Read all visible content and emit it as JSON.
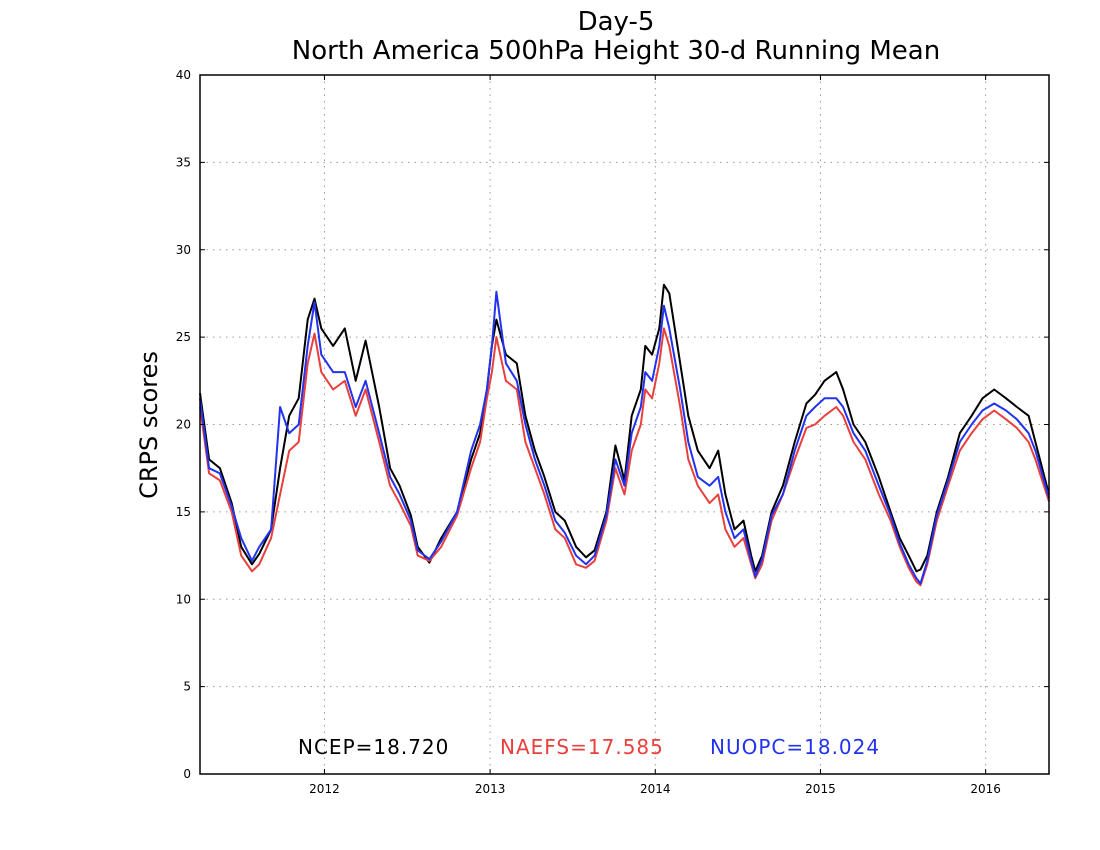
{
  "chart_data": {
    "type": "line",
    "title": "Day-5",
    "subtitle": "North America 500hPa Height 30-d Running Mean",
    "xlabel": "",
    "ylabel": "CRPS scores",
    "ylim": [
      0,
      40
    ],
    "xlim": [
      "2011-04-01",
      "2016-05-20"
    ],
    "y_ticks": [
      "0",
      "5",
      "10",
      "15",
      "20",
      "25",
      "30",
      "35",
      "40"
    ],
    "x_ticks": [
      {
        "label": "2012",
        "date": "2012-01-01"
      },
      {
        "label": "2013",
        "date": "2013-01-01"
      },
      {
        "label": "2014",
        "date": "2014-01-01"
      },
      {
        "label": "2015",
        "date": "2015-01-01"
      },
      {
        "label": "2016",
        "date": "2016-01-01"
      }
    ],
    "grid": true,
    "legend_position": "bottom-center",
    "legend": [
      {
        "label": "NCEP=18.720",
        "color": "#000000"
      },
      {
        "label": "NAEFS=17.585",
        "color": "#e8403c"
      },
      {
        "label": "NUOPC=18.024",
        "color": "#2233ee"
      }
    ],
    "series": [
      {
        "color": "#000000",
        "x": [
          "2011-04-01",
          "2011-04-21",
          "2011-05-15",
          "2011-06-10",
          "2011-07-01",
          "2011-07-25",
          "2011-08-10",
          "2011-09-05",
          "2011-09-25",
          "2011-10-15",
          "2011-11-05",
          "2011-11-25",
          "2011-12-10",
          "2011-12-25",
          "2012-01-20",
          "2012-02-15",
          "2012-03-10",
          "2012-04-01",
          "2012-05-01",
          "2012-05-25",
          "2012-06-15",
          "2012-07-10",
          "2012-07-25",
          "2012-08-20",
          "2012-09-15",
          "2012-10-20",
          "2012-11-20",
          "2012-12-10",
          "2012-12-25",
          "2013-01-05",
          "2013-01-15",
          "2013-02-05",
          "2013-03-01",
          "2013-03-20",
          "2013-04-10",
          "2013-05-01",
          "2013-05-25",
          "2013-06-15",
          "2013-07-10",
          "2013-08-01",
          "2013-08-20",
          "2013-09-15",
          "2013-10-05",
          "2013-10-25",
          "2013-11-10",
          "2013-11-30",
          "2013-12-10",
          "2013-12-25",
          "2014-01-10",
          "2014-01-20",
          "2014-02-01",
          "2014-02-25",
          "2014-03-15",
          "2014-04-05",
          "2014-05-01",
          "2014-05-20",
          "2014-06-05",
          "2014-06-25",
          "2014-07-15",
          "2014-08-01",
          "2014-08-10",
          "2014-08-25",
          "2014-09-15",
          "2014-10-10",
          "2014-11-05",
          "2014-12-01",
          "2014-12-20",
          "2015-01-10",
          "2015-02-05",
          "2015-02-20",
          "2015-03-15",
          "2015-04-10",
          "2015-05-10",
          "2015-06-05",
          "2015-06-25",
          "2015-07-15",
          "2015-08-01",
          "2015-08-10",
          "2015-08-25",
          "2015-09-15",
          "2015-10-10",
          "2015-11-05",
          "2015-12-01",
          "2015-12-25",
          "2016-01-20",
          "2016-02-15",
          "2016-03-10",
          "2016-04-05",
          "2016-04-20",
          "2016-05-20"
        ],
        "values": [
          21.8,
          18.0,
          17.5,
          15.5,
          13.0,
          12.0,
          12.6,
          14.0,
          17.5,
          20.5,
          21.5,
          26.0,
          27.2,
          25.5,
          24.5,
          25.5,
          22.5,
          24.8,
          21.0,
          17.5,
          16.5,
          14.8,
          13.0,
          12.1,
          13.5,
          15.0,
          18.0,
          19.5,
          22.0,
          24.5,
          26.0,
          24.0,
          23.5,
          20.5,
          18.5,
          17.0,
          15.0,
          14.5,
          13.0,
          12.4,
          12.8,
          15.0,
          18.8,
          16.8,
          20.5,
          22.0,
          24.5,
          24.0,
          25.5,
          28.0,
          27.5,
          23.5,
          20.5,
          18.5,
          17.5,
          18.5,
          16.0,
          14.0,
          14.5,
          12.5,
          11.6,
          12.5,
          15.0,
          16.5,
          19.0,
          21.2,
          21.7,
          22.5,
          23.0,
          22.0,
          20.0,
          19.0,
          17.0,
          15.0,
          13.5,
          12.5,
          11.6,
          11.7,
          12.5,
          15.0,
          17.0,
          19.5,
          20.5,
          21.5,
          22.0,
          21.5,
          21.0,
          20.5,
          19.0,
          16.0
        ]
      },
      {
        "color": "#e8403c",
        "x": [
          "2011-04-01",
          "2011-04-21",
          "2011-05-15",
          "2011-06-10",
          "2011-07-01",
          "2011-07-25",
          "2011-08-10",
          "2011-09-05",
          "2011-09-25",
          "2011-10-15",
          "2011-11-05",
          "2011-11-25",
          "2011-12-10",
          "2011-12-25",
          "2012-01-20",
          "2012-02-15",
          "2012-03-10",
          "2012-04-01",
          "2012-05-01",
          "2012-05-25",
          "2012-06-15",
          "2012-07-10",
          "2012-07-25",
          "2012-08-20",
          "2012-09-15",
          "2012-10-20",
          "2012-11-20",
          "2012-12-10",
          "2012-12-25",
          "2013-01-05",
          "2013-01-15",
          "2013-02-05",
          "2013-03-01",
          "2013-03-20",
          "2013-04-10",
          "2013-05-01",
          "2013-05-25",
          "2013-06-15",
          "2013-07-10",
          "2013-08-01",
          "2013-08-20",
          "2013-09-15",
          "2013-10-05",
          "2013-10-25",
          "2013-11-10",
          "2013-11-30",
          "2013-12-10",
          "2013-12-25",
          "2014-01-10",
          "2014-01-20",
          "2014-02-01",
          "2014-02-25",
          "2014-03-15",
          "2014-04-05",
          "2014-05-01",
          "2014-05-20",
          "2014-06-05",
          "2014-06-25",
          "2014-07-15",
          "2014-08-01",
          "2014-08-10",
          "2014-08-25",
          "2014-09-15",
          "2014-10-10",
          "2014-11-05",
          "2014-12-01",
          "2014-12-20",
          "2015-01-10",
          "2015-02-05",
          "2015-02-20",
          "2015-03-15",
          "2015-04-10",
          "2015-05-10",
          "2015-06-05",
          "2015-06-25",
          "2015-07-15",
          "2015-08-01",
          "2015-08-10",
          "2015-08-25",
          "2015-09-15",
          "2015-10-10",
          "2015-11-05",
          "2015-12-01",
          "2015-12-25",
          "2016-01-20",
          "2016-02-15",
          "2016-03-10",
          "2016-04-05",
          "2016-04-20",
          "2016-05-20"
        ],
        "values": [
          21.0,
          17.2,
          16.8,
          15.0,
          12.5,
          11.6,
          12.0,
          13.5,
          16.0,
          18.5,
          19.0,
          23.5,
          25.2,
          23.0,
          22.0,
          22.5,
          20.5,
          22.0,
          19.0,
          16.5,
          15.5,
          14.2,
          12.5,
          12.2,
          13.0,
          14.8,
          17.5,
          19.0,
          21.5,
          23.0,
          25.0,
          22.5,
          22.0,
          19.0,
          17.5,
          16.0,
          14.0,
          13.5,
          12.0,
          11.8,
          12.2,
          14.5,
          17.5,
          16.0,
          18.5,
          20.0,
          22.0,
          21.5,
          23.5,
          25.5,
          24.5,
          21.0,
          18.0,
          16.5,
          15.5,
          16.0,
          14.0,
          13.0,
          13.5,
          12.0,
          11.2,
          12.0,
          14.5,
          16.0,
          18.0,
          19.8,
          20.0,
          20.5,
          21.0,
          20.5,
          19.0,
          18.0,
          16.0,
          14.5,
          13.0,
          11.8,
          11.0,
          10.8,
          12.0,
          14.5,
          16.5,
          18.5,
          19.5,
          20.3,
          20.8,
          20.3,
          19.8,
          19.0,
          18.0,
          15.6
        ]
      },
      {
        "color": "#2233ee",
        "x": [
          "2011-04-01",
          "2011-04-21",
          "2011-05-15",
          "2011-06-10",
          "2011-07-01",
          "2011-07-25",
          "2011-08-10",
          "2011-09-05",
          "2011-09-25",
          "2011-10-15",
          "2011-11-05",
          "2011-11-25",
          "2011-12-10",
          "2011-12-25",
          "2012-01-20",
          "2012-02-15",
          "2012-03-10",
          "2012-04-01",
          "2012-05-01",
          "2012-05-25",
          "2012-06-15",
          "2012-07-10",
          "2012-07-25",
          "2012-08-20",
          "2012-09-15",
          "2012-10-20",
          "2012-11-20",
          "2012-12-10",
          "2012-12-25",
          "2013-01-05",
          "2013-01-15",
          "2013-02-05",
          "2013-03-01",
          "2013-03-20",
          "2013-04-10",
          "2013-05-01",
          "2013-05-25",
          "2013-06-15",
          "2013-07-10",
          "2013-08-01",
          "2013-08-20",
          "2013-09-15",
          "2013-10-05",
          "2013-10-25",
          "2013-11-10",
          "2013-11-30",
          "2013-12-10",
          "2013-12-25",
          "2014-01-10",
          "2014-01-20",
          "2014-02-01",
          "2014-02-25",
          "2014-03-15",
          "2014-04-05",
          "2014-05-01",
          "2014-05-20",
          "2014-06-05",
          "2014-06-25",
          "2014-07-15",
          "2014-08-01",
          "2014-08-10",
          "2014-08-25",
          "2014-09-15",
          "2014-10-10",
          "2014-11-05",
          "2014-12-01",
          "2014-12-20",
          "2015-01-10",
          "2015-02-05",
          "2015-02-20",
          "2015-03-15",
          "2015-04-10",
          "2015-05-10",
          "2015-06-05",
          "2015-06-25",
          "2015-07-15",
          "2015-08-01",
          "2015-08-10",
          "2015-08-25",
          "2015-09-15",
          "2015-10-10",
          "2015-11-05",
          "2015-12-01",
          "2015-12-25",
          "2016-01-20",
          "2016-02-15",
          "2016-03-10",
          "2016-04-05",
          "2016-04-20",
          "2016-05-20"
        ],
        "values": [
          21.5,
          17.5,
          17.2,
          15.3,
          13.5,
          12.2,
          13.0,
          14.0,
          21.0,
          19.5,
          20.0,
          24.5,
          27.0,
          24.0,
          23.0,
          23.0,
          21.0,
          22.5,
          19.5,
          17.0,
          16.0,
          14.5,
          12.8,
          12.3,
          13.3,
          15.0,
          18.5,
          20.0,
          22.0,
          24.5,
          27.6,
          23.5,
          22.5,
          20.0,
          18.0,
          16.5,
          14.5,
          13.8,
          12.5,
          12.0,
          12.5,
          14.8,
          18.0,
          16.5,
          19.5,
          21.0,
          23.0,
          22.5,
          24.5,
          26.8,
          25.5,
          22.0,
          19.0,
          17.0,
          16.5,
          17.0,
          15.0,
          13.5,
          14.0,
          12.2,
          11.3,
          12.3,
          14.8,
          16.0,
          18.5,
          20.5,
          21.0,
          21.5,
          21.5,
          21.0,
          19.5,
          18.5,
          16.5,
          14.8,
          13.2,
          12.0,
          11.2,
          10.9,
          12.2,
          14.8,
          16.8,
          19.0,
          20.0,
          20.8,
          21.2,
          20.8,
          20.3,
          19.5,
          18.5,
          15.8
        ]
      }
    ]
  }
}
